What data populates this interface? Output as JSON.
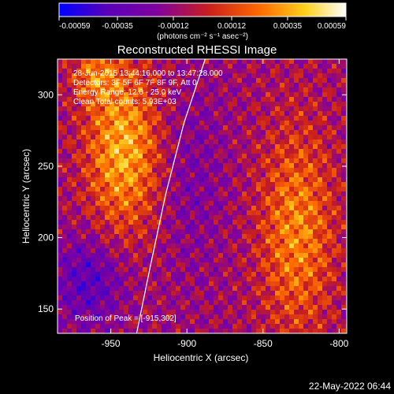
{
  "colorbar": {
    "ticks": [
      "-0.00059",
      "-0.00035",
      "-0.00012",
      "0.00012",
      "0.00035",
      "0.00059"
    ],
    "tick_values": [
      -0.00059,
      -0.00035,
      -0.00012,
      0.00012,
      0.00035,
      0.00059
    ],
    "range": [
      -0.00059,
      0.00059
    ],
    "unit_label": "(photons cm⁻² s⁻¹ asec⁻²)",
    "colors": [
      "#0000ff",
      "#5a00b8",
      "#8000a0",
      "#c81e1e",
      "#ff6a00",
      "#ffd21e",
      "#ffffff"
    ]
  },
  "chart_data": {
    "type": "heatmap",
    "title": "Reconstructed RHESSI Image",
    "xlabel": "Heliocentric X (arcsec)",
    "ylabel": "Heliocentric Y (arcsec)",
    "xlim": [
      -985,
      -795
    ],
    "ylim": [
      133,
      325
    ],
    "xticks": [
      -950,
      -900,
      -850,
      -800
    ],
    "yticks": [
      150,
      200,
      250,
      300
    ],
    "xtick_labels": [
      "-950",
      "-900",
      "-850",
      "-800"
    ],
    "ytick_labels": [
      "150",
      "200",
      "250",
      "300"
    ],
    "limb_points": [
      [
        -933,
        133
      ],
      [
        -924,
        180
      ],
      [
        -914,
        230
      ],
      [
        -902,
        280
      ],
      [
        -888,
        325
      ]
    ],
    "annotations": [
      "28-Jun-2015 13:44:16.000 to 13:47:28.000",
      "Detectors: 3F 5F 6F 7F 8F 9F, Att 0",
      "Energy Range: 12.0 - 25.0 keV",
      "Clean   Total counts: 5.93E+03"
    ],
    "peak_label": "Position of Peak = [-915,302]",
    "peak": [
      -915,
      302
    ]
  },
  "timestamp": "22-May-2022 06:44"
}
